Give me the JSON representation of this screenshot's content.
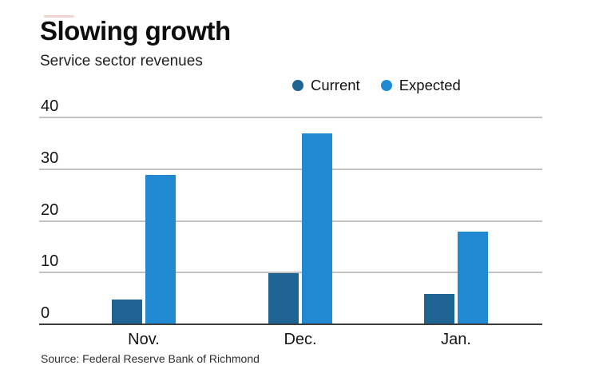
{
  "header": {
    "title": "Slowing growth",
    "subtitle": "Service sector revenues"
  },
  "source": "Source: Federal Reserve Bank of Richmond",
  "colors": {
    "current": "#1e6391",
    "expected": "#2089d2",
    "grid": "#c2c2c2",
    "axis": "#3d3d3d",
    "text": "#161616"
  },
  "chart_data": {
    "type": "bar",
    "title": "Slowing growth",
    "subtitle": "Service sector revenues",
    "categories": [
      "Nov.",
      "Dec.",
      "Jan."
    ],
    "series": [
      {
        "name": "Current",
        "color": "#1e6391",
        "values": [
          5,
          10,
          6
        ]
      },
      {
        "name": "Expected",
        "color": "#2089d2",
        "values": [
          29,
          37,
          18
        ]
      }
    ],
    "xlabel": "",
    "ylabel": "",
    "ylim": [
      0,
      40
    ],
    "yticks": [
      0,
      10,
      20,
      30,
      40
    ],
    "grid": true,
    "legend_position": "top-right",
    "source": "Source: Federal Reserve Bank of Richmond"
  }
}
